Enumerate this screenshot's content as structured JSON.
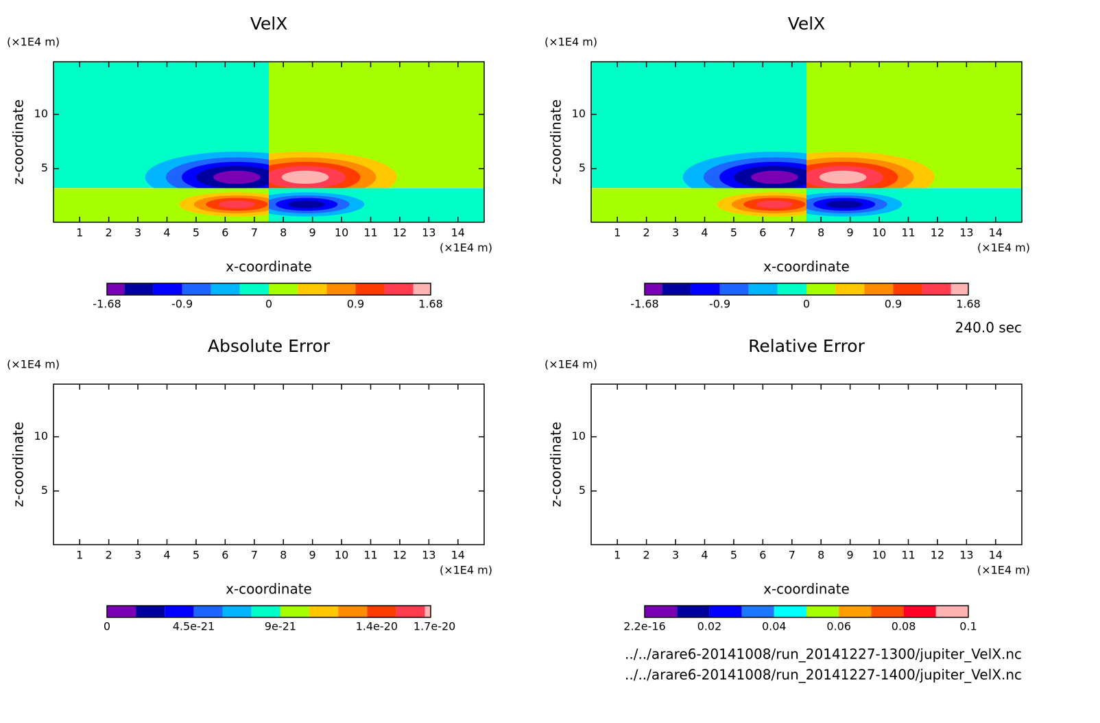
{
  "chart_data": [
    {
      "type": "contour",
      "title": "VelX",
      "x_label": "x-coordinate",
      "y_label": "z-coordinate",
      "x_unit": "(×1E4 m)",
      "y_unit": "(×1E4 m)",
      "xlim": [
        0.1,
        14.9
      ],
      "ylim": [
        0.05,
        14.85
      ],
      "xticks": [
        1,
        2,
        3,
        4,
        5,
        6,
        7,
        8,
        9,
        10,
        11,
        12,
        13,
        14
      ],
      "yticks": [
        5,
        10
      ],
      "split": {
        "x": 7.5,
        "y": 3.2
      },
      "lobes": [
        {
          "x": 6.4,
          "y": 4.2,
          "value": -1.68
        },
        {
          "x": 8.75,
          "y": 4.2,
          "value": 1.68
        },
        {
          "x": 6.4,
          "y": 1.7,
          "value": 1.4
        },
        {
          "x": 8.8,
          "y": 1.7,
          "value": -1.4
        }
      ],
      "colorbar": {
        "lim": [
          -1.68,
          1.68
        ],
        "levels": [
          -1.68,
          -1.5,
          -1.2,
          -0.9,
          -0.6,
          -0.3,
          0,
          0.3,
          0.6,
          0.9,
          1.2,
          1.5,
          1.68
        ],
        "colors": [
          "#7a00b4",
          "#0000a0",
          "#0000ff",
          "#1e64ff",
          "#00b4ff",
          "#00ffc8",
          "#a8ff00",
          "#ffc800",
          "#ff8c00",
          "#ff3c00",
          "#ff3c50",
          "#ffb4b4"
        ],
        "ticks": [
          -1.68,
          -0.9,
          0,
          0.9,
          1.68
        ]
      }
    },
    {
      "type": "contour",
      "title": "VelX",
      "x_label": "x-coordinate",
      "y_label": "z-coordinate",
      "x_unit": "(×1E4 m)",
      "y_unit": "(×1E4 m)",
      "xlim": [
        0.1,
        14.9
      ],
      "ylim": [
        0.05,
        14.85
      ],
      "xticks": [
        1,
        2,
        3,
        4,
        5,
        6,
        7,
        8,
        9,
        10,
        11,
        12,
        13,
        14
      ],
      "yticks": [
        5,
        10
      ],
      "split": {
        "x": 7.5,
        "y": 3.2
      },
      "lobes": [
        {
          "x": 6.4,
          "y": 4.2,
          "value": -1.68
        },
        {
          "x": 8.75,
          "y": 4.2,
          "value": 1.68
        },
        {
          "x": 6.4,
          "y": 1.7,
          "value": 1.4
        },
        {
          "x": 8.8,
          "y": 1.7,
          "value": -1.4
        }
      ],
      "colorbar": {
        "lim": [
          -1.68,
          1.68
        ],
        "levels": [
          -1.68,
          -1.5,
          -1.2,
          -0.9,
          -0.6,
          -0.3,
          0,
          0.3,
          0.6,
          0.9,
          1.2,
          1.5,
          1.68
        ],
        "colors": [
          "#7a00b4",
          "#0000a0",
          "#0000ff",
          "#1e64ff",
          "#00b4ff",
          "#00ffc8",
          "#a8ff00",
          "#ffc800",
          "#ff8c00",
          "#ff3c00",
          "#ff3c50",
          "#ffb4b4"
        ],
        "ticks": [
          -1.68,
          -0.9,
          0,
          0.9,
          1.68
        ]
      }
    },
    {
      "type": "contour",
      "title": "Absolute Error",
      "x_label": "x-coordinate",
      "y_label": "z-coordinate",
      "x_unit": "(×1E4 m)",
      "y_unit": "(×1E4 m)",
      "xlim": [
        0.1,
        14.9
      ],
      "ylim": [
        0.05,
        14.85
      ],
      "xticks": [
        1,
        2,
        3,
        4,
        5,
        6,
        7,
        8,
        9,
        10,
        11,
        12,
        13,
        14
      ],
      "yticks": [
        5,
        10
      ],
      "colorbar": {
        "lim": [
          0,
          1.68e-20
        ],
        "levels": [
          0,
          1.5e-21,
          3e-21,
          4.5e-21,
          6e-21,
          7.5e-21,
          9e-21,
          1.05e-20,
          1.2e-20,
          1.35e-20,
          1.5e-20,
          1.65e-20,
          1.68e-20
        ],
        "colors": [
          "#7a00b4",
          "#0000a0",
          "#0000ff",
          "#1e64ff",
          "#00b4ff",
          "#00ffc8",
          "#a8ff00",
          "#ffc800",
          "#ff8c00",
          "#ff3c00",
          "#ff3c50",
          "#ffb4b4"
        ],
        "ticks": [
          0,
          4.5e-21,
          9e-21,
          1.4e-20,
          1.7e-20
        ]
      }
    },
    {
      "type": "contour",
      "title": "Relative Error",
      "x_label": "x-coordinate",
      "y_label": "z-coordinate",
      "x_unit": "(×1E4 m)",
      "y_unit": "(×1E4 m)",
      "xlim": [
        0.1,
        14.9
      ],
      "ylim": [
        0.05,
        14.85
      ],
      "xticks": [
        1,
        2,
        3,
        4,
        5,
        6,
        7,
        8,
        9,
        10,
        11,
        12,
        13,
        14
      ],
      "yticks": [
        5,
        10
      ],
      "colorbar": {
        "lim": [
          2.2e-16,
          0.1
        ],
        "levels": [
          2.2e-16,
          0.01,
          0.02,
          0.03,
          0.04,
          0.05,
          0.06,
          0.07,
          0.08,
          0.09,
          0.1
        ],
        "colors": [
          "#7a00b4",
          "#0000a0",
          "#0000ff",
          "#1e78ff",
          "#00ffff",
          "#a8ff00",
          "#ffa000",
          "#ff5000",
          "#ff0028",
          "#ffb4b4"
        ],
        "ticks": [
          2.2e-16,
          0.02,
          0.04,
          0.06,
          0.08,
          0.1
        ]
      }
    }
  ],
  "annotations": {
    "time": "240.0 sec",
    "files": [
      "../../arare6-20141008/run_20141227-1300/jupiter_VelX.nc",
      "../../arare6-20141008/run_20141227-1400/jupiter_VelX.nc"
    ]
  }
}
